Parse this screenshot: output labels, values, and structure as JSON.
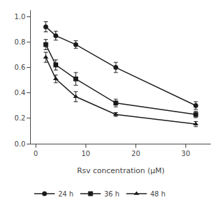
{
  "chart_data": {
    "type": "line",
    "xlabel": "Rsv concentration (μM)",
    "x": [
      2,
      4,
      8,
      16,
      32
    ],
    "series": [
      {
        "name": "24 h",
        "color": "#1a1a1a",
        "marker": "circle",
        "line_style": "solid",
        "values": [
          0.92,
          0.85,
          0.78,
          0.6,
          0.3
        ],
        "yerr": [
          0.04,
          0.035,
          0.03,
          0.04,
          0.03
        ]
      },
      {
        "name": "36 h",
        "color": "#1a1a1a",
        "marker": "square",
        "line_style": "solid",
        "values": [
          0.78,
          0.62,
          0.51,
          0.32,
          0.23
        ],
        "yerr": [
          0.04,
          0.04,
          0.05,
          0.03,
          0.025
        ]
      },
      {
        "name": "48 h",
        "color": "#1a1a1a",
        "marker": "triangle-up",
        "line_style": "solid",
        "values": [
          0.68,
          0.51,
          0.37,
          0.23,
          0.155
        ],
        "yerr": [
          0.04,
          0.03,
          0.04,
          0.015,
          0.02
        ]
      }
    ],
    "xlim": [
      -1,
      35
    ],
    "xticks": [
      0,
      10,
      20,
      30
    ],
    "ylim": [
      0.0,
      1.05
    ],
    "yticks": [
      {
        "value": 0,
        "label": "0.0"
      },
      0.2,
      0.4,
      0.6,
      0.8,
      {
        "value": 1,
        "label": "1.0"
      }
    ],
    "grid": false,
    "legend": "bottom"
  }
}
